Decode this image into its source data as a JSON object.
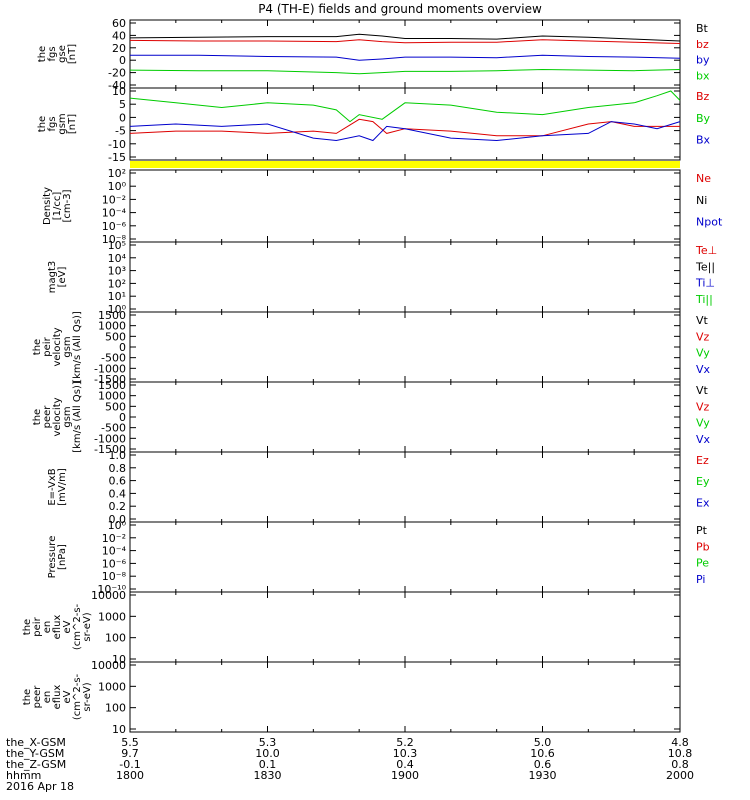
{
  "title": "P4 (TH-E) fields and ground moments overview",
  "colors": {
    "black": "#000000",
    "red": "#dd0000",
    "green": "#00cc00",
    "blue": "#0000cc",
    "yellow": "#ffff00"
  },
  "chart_data": [
    {
      "type": "line",
      "ylabel": [
        "the",
        "fgs",
        "gse",
        "[nT]"
      ],
      "yticks": [
        "60",
        "40",
        "20",
        "0",
        "-20",
        "-40"
      ],
      "ylim": [
        -40,
        60
      ],
      "series": [
        {
          "name": "Bt",
          "color": "black",
          "x": [
            1800,
            1815,
            1830,
            1845,
            1850,
            1855,
            1900,
            1910,
            1920,
            1930,
            1940,
            1950,
            2000
          ],
          "values": [
            36,
            37,
            38,
            38,
            42,
            39,
            35,
            35,
            34,
            39,
            37,
            34,
            31
          ]
        },
        {
          "name": "bz",
          "color": "red",
          "x": [
            1800,
            1815,
            1830,
            1845,
            1850,
            1855,
            1900,
            1910,
            1920,
            1930,
            1940,
            1950,
            2000
          ],
          "values": [
            32,
            31,
            31,
            30,
            33,
            30,
            28,
            29,
            29,
            33,
            31,
            29,
            27
          ]
        },
        {
          "name": "by",
          "color": "blue",
          "x": [
            1800,
            1815,
            1830,
            1845,
            1850,
            1855,
            1900,
            1910,
            1920,
            1930,
            1940,
            1950,
            2000
          ],
          "values": [
            8,
            8,
            6,
            5,
            0,
            2,
            5,
            5,
            4,
            8,
            6,
            5,
            3
          ]
        },
        {
          "name": "bx",
          "color": "green",
          "x": [
            1800,
            1815,
            1830,
            1845,
            1850,
            1855,
            1900,
            1910,
            1920,
            1930,
            1940,
            1950,
            2000
          ],
          "values": [
            -16,
            -17,
            -17,
            -20,
            -22,
            -20,
            -18,
            -18,
            -17,
            -15,
            -16,
            -17,
            -15
          ]
        }
      ]
    },
    {
      "type": "line",
      "ylabel": [
        "the",
        "fgs",
        "gsm",
        "[nT]"
      ],
      "yticks": [
        "10",
        "5",
        "0",
        "-5",
        "-10",
        "-15"
      ],
      "ylim": [
        -18,
        10
      ],
      "series": [
        {
          "name": "Bz",
          "color": "red",
          "x": [
            1800,
            1810,
            1820,
            1830,
            1840,
            1845,
            1850,
            1853,
            1856,
            1900,
            1910,
            1920,
            1930,
            1940,
            1945,
            1950,
            2000
          ],
          "values": [
            -8,
            -7,
            -7,
            -8,
            -7,
            -8,
            -2,
            -3,
            -8,
            -6,
            -7,
            -9,
            -9,
            -4,
            -3,
            -5,
            -5
          ]
        },
        {
          "name": "By",
          "color": "green",
          "x": [
            1800,
            1810,
            1820,
            1830,
            1840,
            1845,
            1848,
            1850,
            1855,
            1900,
            1910,
            1920,
            1930,
            1940,
            1950,
            1955,
            1958,
            2000
          ],
          "values": [
            7,
            5,
            3,
            5,
            4,
            2,
            -3,
            0,
            -2,
            5,
            4,
            1,
            0,
            3,
            5,
            8,
            10,
            6
          ]
        },
        {
          "name": "Bx",
          "color": "blue",
          "x": [
            1800,
            1810,
            1820,
            1830,
            1840,
            1845,
            1850,
            1853,
            1856,
            1900,
            1910,
            1920,
            1930,
            1940,
            1945,
            1950,
            1955,
            2000
          ],
          "values": [
            -5,
            -4,
            -5,
            -4,
            -10,
            -11,
            -9,
            -11,
            -5,
            -6,
            -10,
            -11,
            -9,
            -8,
            -3,
            -4,
            -6,
            -3
          ]
        }
      ],
      "bar": "yellow"
    },
    {
      "type": "line",
      "ylabel": [
        "Density",
        "[1/cc]",
        "[cm-3]"
      ],
      "yticks": [
        "10²",
        "10⁰",
        "10⁻²",
        "10⁻⁴",
        "10⁻⁶",
        "10⁻⁸"
      ],
      "legend": [
        {
          "name": "Ne",
          "color": "red"
        },
        {
          "name": "Ni",
          "color": "black"
        },
        {
          "name": "Npot",
          "color": "blue"
        }
      ],
      "series": []
    },
    {
      "type": "line",
      "ylabel": [
        "magt3",
        "[eV]"
      ],
      "yticks": [
        "10⁵",
        "10⁴",
        "10³",
        "10²",
        "10¹",
        "10⁰"
      ],
      "legend": [
        {
          "name": "Te⊥",
          "color": "red"
        },
        {
          "name": "Te||",
          "color": "black"
        },
        {
          "name": "Ti⊥",
          "color": "blue"
        },
        {
          "name": "Ti||",
          "color": "green"
        }
      ],
      "series": []
    },
    {
      "type": "line",
      "ylabel": [
        "the",
        "peir",
        "velocity",
        "gsm",
        "[km/s (All Qs)]"
      ],
      "yticks": [
        "1500",
        "1000",
        "500",
        "0",
        "-500",
        "-1000",
        "-1500"
      ],
      "legend": [
        {
          "name": "Vt",
          "color": "black"
        },
        {
          "name": "Vz",
          "color": "red"
        },
        {
          "name": "Vy",
          "color": "green"
        },
        {
          "name": "Vx",
          "color": "blue"
        }
      ],
      "series": []
    },
    {
      "type": "line",
      "ylabel": [
        "the",
        "peer",
        "velocity",
        "gsm",
        "[km/s (All Qs)]"
      ],
      "yticks": [
        "1500",
        "1000",
        "500",
        "0",
        "-500",
        "-1000",
        "-1500"
      ],
      "legend": [
        {
          "name": "Vt",
          "color": "black"
        },
        {
          "name": "Vz",
          "color": "red"
        },
        {
          "name": "Vy",
          "color": "green"
        },
        {
          "name": "Vx",
          "color": "blue"
        }
      ],
      "series": []
    },
    {
      "type": "line",
      "ylabel": [
        "E=-VxB",
        "[mV/m]"
      ],
      "yticks": [
        "1.0",
        "0.8",
        "0.6",
        "0.4",
        "0.2",
        "0.0"
      ],
      "legend": [
        {
          "name": "Ez",
          "color": "red"
        },
        {
          "name": "Ey",
          "color": "green"
        },
        {
          "name": "Ex",
          "color": "blue"
        }
      ],
      "series": []
    },
    {
      "type": "line",
      "ylabel": [
        "Pressure",
        "[nPa]"
      ],
      "yticks": [
        "10⁰",
        "10⁻²",
        "10⁻⁴",
        "10⁻⁶",
        "10⁻⁸",
        "10⁻¹⁰"
      ],
      "legend": [
        {
          "name": "Pt",
          "color": "black"
        },
        {
          "name": "Pb",
          "color": "red"
        },
        {
          "name": "Pe",
          "color": "green"
        },
        {
          "name": "Pi",
          "color": "blue"
        }
      ],
      "series": []
    },
    {
      "type": "heatmap",
      "ylabel": [
        "the",
        "peir",
        "en",
        "eflux",
        "eV",
        "(cm^2-s-",
        "sr-eV)"
      ],
      "yticks": [
        "10000",
        "1000",
        "100",
        "10"
      ],
      "series": []
    },
    {
      "type": "heatmap",
      "ylabel": [
        "the",
        "peer",
        "en",
        "eflux",
        "eV",
        "(cm^2-s-",
        "sr-eV)"
      ],
      "yticks": [
        "10000",
        "1000",
        "100",
        "10"
      ],
      "series": []
    }
  ],
  "xaxis": {
    "range": [
      1800,
      2000
    ],
    "rows": [
      {
        "label": "the_X-GSM",
        "values": [
          "5.5",
          "5.3",
          "5.2",
          "5.0",
          "4.8"
        ]
      },
      {
        "label": "the_Y-GSM",
        "values": [
          "9.7",
          "10.0",
          "10.3",
          "10.6",
          "10.8"
        ]
      },
      {
        "label": "the_Z-GSM",
        "values": [
          "-0.1",
          "0.1",
          "0.4",
          "0.6",
          "0.8"
        ]
      },
      {
        "label": "hhmm",
        "values": [
          "1800",
          "1830",
          "1900",
          "1930",
          "2000"
        ]
      }
    ],
    "date": "2016 Apr 18"
  }
}
